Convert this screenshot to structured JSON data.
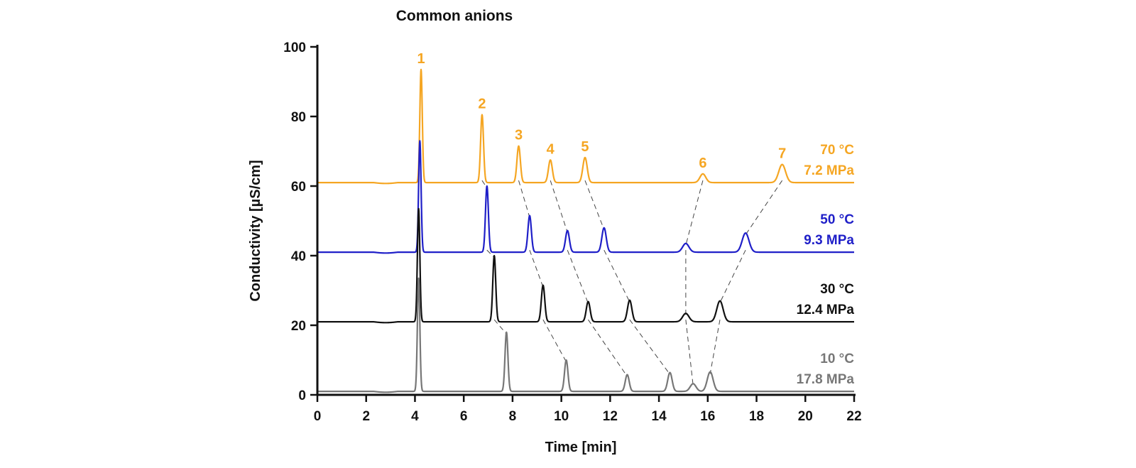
{
  "chart_data": {
    "type": "line",
    "title": "Common anions",
    "xlabel": "Time [min]",
    "ylabel": "Conductivity [µS/cm]",
    "xlim": [
      0,
      22
    ],
    "ylim": [
      0,
      100
    ],
    "xticks": [
      "0",
      "2",
      "4",
      "6",
      "8",
      "10",
      "12",
      "14",
      "16",
      "18",
      "20",
      "22"
    ],
    "yticks": [
      "0",
      "20",
      "40",
      "60",
      "80",
      "100"
    ],
    "grid": false,
    "peak_labels": [
      "1",
      "2",
      "3",
      "4",
      "5",
      "6",
      "7"
    ],
    "series": [
      {
        "temperature": "70 °C",
        "pressure": "7.2 MPa",
        "color": "#F5A623",
        "baseline": 61,
        "peaks": [
          {
            "peak": "1",
            "t": 4.25,
            "y": 93.5,
            "w": 0.05
          },
          {
            "peak": "2",
            "t": 6.75,
            "y": 80.5,
            "w": 0.06
          },
          {
            "peak": "3",
            "t": 8.25,
            "y": 71.5,
            "w": 0.07
          },
          {
            "peak": "4",
            "t": 9.55,
            "y": 67.5,
            "w": 0.08
          },
          {
            "peak": "5",
            "t": 10.97,
            "y": 68.2,
            "w": 0.09
          },
          {
            "peak": "6",
            "t": 15.8,
            "y": 63.5,
            "w": 0.12
          },
          {
            "peak": "7",
            "t": 19.05,
            "y": 66.2,
            "w": 0.14
          }
        ]
      },
      {
        "temperature": "50 °C",
        "pressure": "9.3 MPa",
        "color": "#1F1FC8",
        "baseline": 41,
        "peaks": [
          {
            "peak": "1",
            "t": 4.2,
            "y": 73.0,
            "w": 0.05
          },
          {
            "peak": "2",
            "t": 6.95,
            "y": 60.0,
            "w": 0.06
          },
          {
            "peak": "3",
            "t": 8.7,
            "y": 51.5,
            "w": 0.07
          },
          {
            "peak": "4",
            "t": 10.25,
            "y": 47.2,
            "w": 0.08
          },
          {
            "peak": "5",
            "t": 11.75,
            "y": 48.0,
            "w": 0.09
          },
          {
            "peak": "6",
            "t": 15.1,
            "y": 43.5,
            "w": 0.13
          },
          {
            "peak": "7",
            "t": 17.55,
            "y": 46.5,
            "w": 0.14
          }
        ]
      },
      {
        "temperature": "30 °C",
        "pressure": "12.4 MPa",
        "color": "#111111",
        "baseline": 21,
        "peaks": [
          {
            "peak": "1",
            "t": 4.15,
            "y": 53.5,
            "w": 0.05
          },
          {
            "peak": "2",
            "t": 7.25,
            "y": 40.0,
            "w": 0.06
          },
          {
            "peak": "3",
            "t": 9.25,
            "y": 31.5,
            "w": 0.07
          },
          {
            "peak": "4",
            "t": 11.1,
            "y": 26.8,
            "w": 0.08
          },
          {
            "peak": "5",
            "t": 12.8,
            "y": 27.2,
            "w": 0.09
          },
          {
            "peak": "6",
            "t": 15.1,
            "y": 23.4,
            "w": 0.13
          },
          {
            "peak": "7",
            "t": 16.5,
            "y": 27.0,
            "w": 0.13
          }
        ]
      },
      {
        "temperature": "10 °C",
        "pressure": "17.8 MPa",
        "color": "#777777",
        "baseline": 1,
        "peaks": [
          {
            "peak": "1",
            "t": 4.15,
            "y": 33.5,
            "w": 0.05
          },
          {
            "peak": "2",
            "t": 7.75,
            "y": 18.0,
            "w": 0.06
          },
          {
            "peak": "3",
            "t": 10.2,
            "y": 10.0,
            "w": 0.07
          },
          {
            "peak": "4",
            "t": 12.7,
            "y": 5.8,
            "w": 0.08
          },
          {
            "peak": "5",
            "t": 14.45,
            "y": 6.4,
            "w": 0.09
          },
          {
            "peak": "6",
            "t": 15.4,
            "y": 3.2,
            "w": 0.12
          },
          {
            "peak": "7",
            "t": 16.1,
            "y": 6.6,
            "w": 0.12
          }
        ]
      }
    ]
  }
}
